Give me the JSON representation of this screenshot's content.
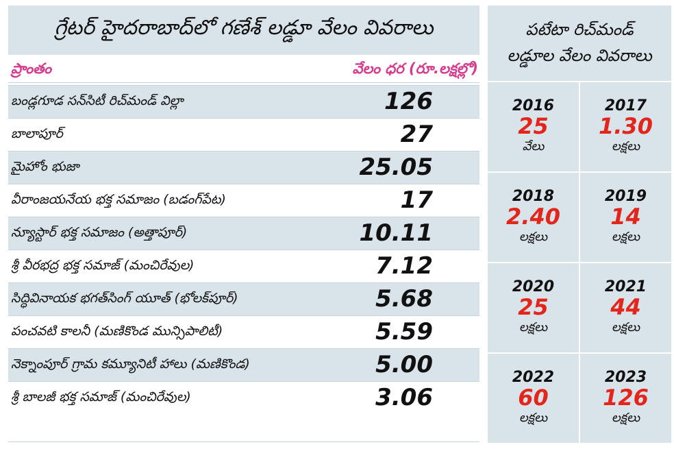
{
  "left_table": {
    "title": "గ్రేటర్ హైదరాబాద్‌లో గణేశ్ లడ్డూ వేలం వివరాలు",
    "header_place": "ప్రాంతం",
    "header_price": "వేలం ధర (రూ.లక్షల్లో)",
    "rows": [
      {
        "place": "బండ్లగూడ సన్‌సిటీ రిచ్‌మండ్ విల్లా",
        "price": "126"
      },
      {
        "place": "బాలాపూర్",
        "price": "27"
      },
      {
        "place": "మైహోం భుజా",
        "price": "25.05"
      },
      {
        "place": "వీరాంజయనేయ భక్త సమాజం (బడంగ్‌పేట)",
        "price": "17"
      },
      {
        "place": "న్యూస్టార్ భక్త సమాజం (అత్తాపూర్)",
        "price": "10.11"
      },
      {
        "place": "శ్రీ వీరభద్ర భక్త సమాజ్ (మంచిరేవుల)",
        "price": "7.12"
      },
      {
        "place": "సిద్ధివినాయక భగత్‌సింగ్ యూత్ (భోలక్‌పూర్)",
        "price": "5.68"
      },
      {
        "place": "పంచవటి కాలనీ (మణికొండ మున్సిపాలిటీ)",
        "price": "5.59"
      },
      {
        "place": "నెక్నాంపూర్ గ్రామ కమ్యూనిటీ హాలు (మణికొండ)",
        "price": "5.00"
      },
      {
        "place": "శ్రీ బాలజీ భక్త సమాజ్ (మంచిరేవుల)",
        "price": "3.06"
      }
    ]
  },
  "right_panel": {
    "title_line1": "పటేటా రిచ్‌మండ్",
    "title_line2": "లడ్డూల వేలం వివరాలు",
    "years": [
      {
        "year": "2016",
        "value": "25",
        "unit": "వేలు"
      },
      {
        "year": "2017",
        "value": "1.30",
        "unit": "లక్షలు"
      },
      {
        "year": "2018",
        "value": "2.40",
        "unit": "లక్షలు"
      },
      {
        "year": "2019",
        "value": "14",
        "unit": "లక్షలు"
      },
      {
        "year": "2020",
        "value": "25",
        "unit": "లక్షలు"
      },
      {
        "year": "2021",
        "value": "44",
        "unit": "లక్షలు"
      },
      {
        "year": "2022",
        "value": "60",
        "unit": "లక్షలు"
      },
      {
        "year": "2023",
        "value": "126",
        "unit": "లక్షలు"
      }
    ]
  },
  "colors": {
    "panel_bg": "#d9e3ea",
    "header_pink": "#d53b8e",
    "value_red": "#e3261c"
  }
}
